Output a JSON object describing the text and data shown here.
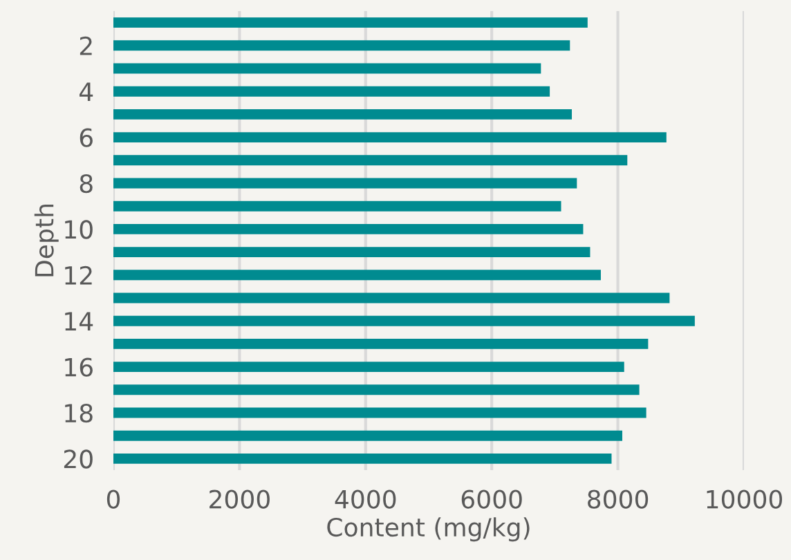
{
  "chart_data": {
    "type": "bar",
    "orientation": "horizontal",
    "xlabel": "Content (mg/kg)",
    "ylabel": "Depth",
    "categories": [
      null,
      "2",
      null,
      "4",
      null,
      "6",
      null,
      "8",
      null,
      "10",
      null,
      "12",
      null,
      "14",
      null,
      "16",
      null,
      "18",
      null,
      "20"
    ],
    "values": [
      7520,
      7240,
      6780,
      6920,
      7270,
      8770,
      8150,
      7350,
      7100,
      7450,
      7560,
      7730,
      8820,
      9220,
      8480,
      8100,
      8340,
      8450,
      8070,
      7900
    ],
    "color": "#008b90",
    "xlim": [
      0,
      10000
    ],
    "xticks": [
      0,
      2000,
      4000,
      6000,
      8000,
      10000
    ],
    "grid": "x"
  }
}
